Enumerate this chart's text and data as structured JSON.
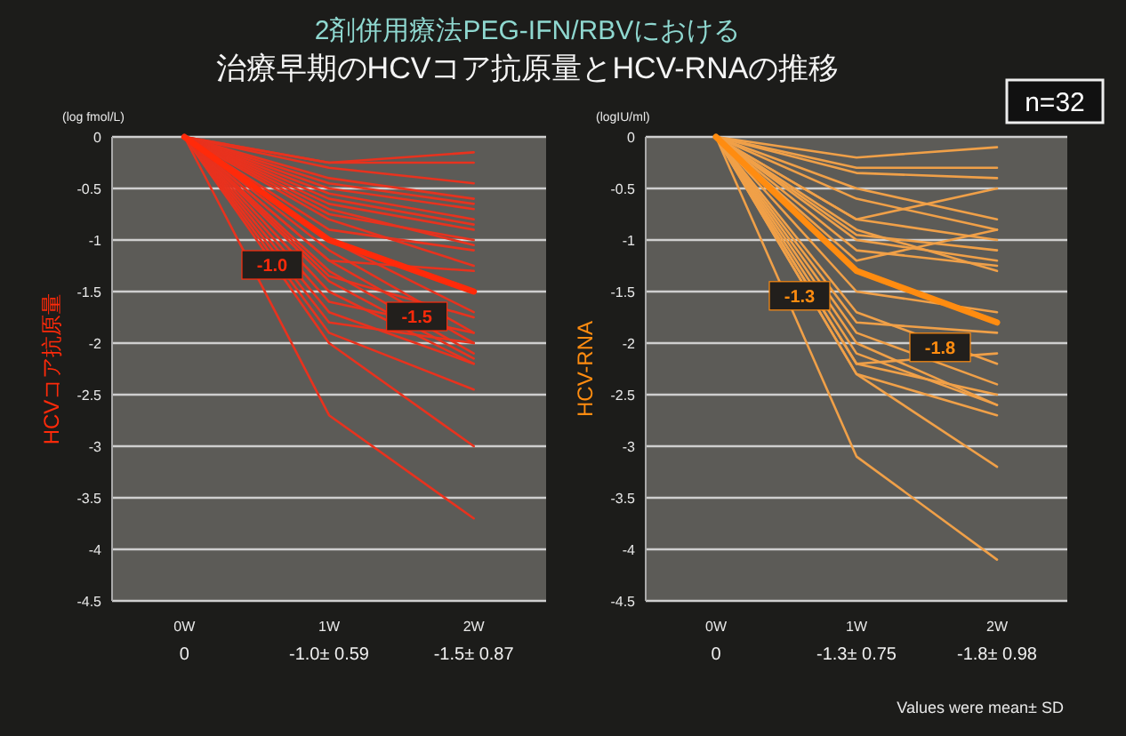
{
  "chart_data": [
    {
      "type": "line",
      "title": "2剤併用療法PEG-IFN/RBVにおける",
      "subtitle": "治療早期のHCVコア抗原量とHCV-RNAの推移",
      "ylabel": "HCVコア抗原量",
      "categories": [
        "0W",
        "1W",
        "2W"
      ],
      "ylim": [
        -4.5,
        0
      ],
      "yticks": [
        0,
        -0.5,
        -1,
        -1.5,
        -2,
        -2.5,
        -3,
        -3.5,
        -4,
        -4.5
      ],
      "grid": "y",
      "annotations": [
        "(log fmol/L)",
        {
          "text": "-1.0",
          "x": "1W",
          "y": -1.0
        },
        {
          "text": "-1.5",
          "x": "2W",
          "y": -1.5
        }
      ],
      "series": [
        {
          "color": "#e8321e",
          "values": [
            0,
            -0.25,
            -0.15
          ]
        },
        {
          "color": "#e8321e",
          "values": [
            0,
            -0.25,
            -0.25
          ]
        },
        {
          "color": "#e8321e",
          "values": [
            0,
            -0.3,
            -0.45
          ]
        },
        {
          "color": "#e8321e",
          "values": [
            0,
            -0.4,
            -0.6
          ]
        },
        {
          "color": "#e8321e",
          "values": [
            0,
            -0.45,
            -0.65
          ]
        },
        {
          "color": "#e8321e",
          "values": [
            0,
            -0.5,
            -0.7
          ]
        },
        {
          "color": "#e8321e",
          "values": [
            0,
            -0.55,
            -0.8
          ]
        },
        {
          "color": "#e8321e",
          "values": [
            0,
            -0.6,
            -0.85
          ]
        },
        {
          "color": "#e8321e",
          "values": [
            0,
            -0.65,
            -0.9
          ]
        },
        {
          "color": "#e8321e",
          "values": [
            0,
            -0.7,
            -1.05
          ]
        },
        {
          "color": "#e8321e",
          "values": [
            0,
            -0.75,
            -1.0
          ]
        },
        {
          "color": "#e8321e",
          "values": [
            0,
            -0.8,
            -1.25
          ]
        },
        {
          "color": "#e8321e",
          "values": [
            0,
            -0.9,
            -1.1
          ]
        },
        {
          "color": "#e8321e",
          "values": [
            0,
            -1.2,
            -1.3
          ]
        },
        {
          "color": "#e8321e",
          "values": [
            0,
            -1.0,
            -1.7
          ]
        },
        {
          "color": "#e8321e",
          "values": [
            0,
            -1.1,
            -1.9
          ]
        },
        {
          "color": "#e8321e",
          "values": [
            0,
            -1.2,
            -2.0
          ]
        },
        {
          "color": "#e8321e",
          "values": [
            0,
            -1.3,
            -2.1
          ]
        },
        {
          "color": "#e8321e",
          "values": [
            0,
            -1.35,
            -1.75
          ]
        },
        {
          "color": "#e8321e",
          "values": [
            0,
            -1.4,
            -2.15
          ]
        },
        {
          "color": "#e8321e",
          "values": [
            0,
            -1.5,
            -2.2
          ]
        },
        {
          "color": "#e8321e",
          "values": [
            0,
            -1.6,
            -1.9
          ]
        },
        {
          "color": "#e8321e",
          "values": [
            0,
            -1.7,
            -2.2
          ]
        },
        {
          "color": "#e8321e",
          "values": [
            0,
            -1.8,
            -2.0
          ]
        },
        {
          "color": "#e8321e",
          "values": [
            0,
            -1.9,
            -2.45
          ]
        },
        {
          "color": "#e8321e",
          "values": [
            0,
            -2.0,
            -3.0
          ]
        },
        {
          "color": "#e8321e",
          "values": [
            0,
            -2.7,
            -3.7
          ]
        },
        {
          "color": "#ff2a0a",
          "values": [
            0,
            -1.0,
            -1.5
          ],
          "value_labels": [
            "0",
            "-1.0± 0.59",
            "-1.5± 0.87"
          ]
        }
      ]
    },
    {
      "type": "line",
      "ylabel": "HCV-RNA",
      "categories": [
        "0W",
        "1W",
        "2W"
      ],
      "ylim": [
        -4.5,
        0
      ],
      "yticks": [
        0,
        -0.5,
        -1,
        -1.5,
        -2,
        -2.5,
        -3,
        -3.5,
        -4,
        -4.5
      ],
      "grid": "y",
      "annotations": [
        "(logIU/ml)",
        "n=32",
        "Values were mean± SD",
        {
          "text": "-1.3",
          "x": "1W",
          "y": -1.3
        },
        {
          "text": "-1.8",
          "x": "2W",
          "y": -1.8
        }
      ],
      "series": [
        {
          "color": "#f0a048",
          "values": [
            0,
            -0.2,
            -0.1
          ]
        },
        {
          "color": "#f0a048",
          "values": [
            0,
            -0.3,
            -0.3
          ]
        },
        {
          "color": "#f0a048",
          "values": [
            0,
            -0.35,
            -0.4
          ]
        },
        {
          "color": "#f0a048",
          "values": [
            0,
            -0.8,
            -0.5
          ]
        },
        {
          "color": "#f0a048",
          "values": [
            0,
            -0.5,
            -0.8
          ]
        },
        {
          "color": "#f0a048",
          "values": [
            0,
            -0.6,
            -0.9
          ]
        },
        {
          "color": "#f0a048",
          "values": [
            0,
            -0.8,
            -1.0
          ]
        },
        {
          "color": "#f0a048",
          "values": [
            0,
            -1.2,
            -0.9
          ]
        },
        {
          "color": "#f0a048",
          "values": [
            0,
            -0.95,
            -1.1
          ]
        },
        {
          "color": "#f0a048",
          "values": [
            0,
            -1.0,
            -1.2
          ]
        },
        {
          "color": "#f0a048",
          "values": [
            0,
            -0.9,
            -1.3
          ]
        },
        {
          "color": "#f0a048",
          "values": [
            0,
            -1.1,
            -1.25
          ]
        },
        {
          "color": "#f0a048",
          "values": [
            0,
            -1.5,
            -1.7
          ]
        },
        {
          "color": "#f0a048",
          "values": [
            0,
            -1.8,
            -1.9
          ]
        },
        {
          "color": "#f0a048",
          "values": [
            0,
            -1.7,
            -2.2
          ]
        },
        {
          "color": "#f0a048",
          "values": [
            0,
            -1.9,
            -2.4
          ]
        },
        {
          "color": "#f0a048",
          "values": [
            0,
            -2.0,
            -2.6
          ]
        },
        {
          "color": "#f0a048",
          "values": [
            0,
            -2.2,
            -2.1
          ]
        },
        {
          "color": "#f0a048",
          "values": [
            0,
            -2.2,
            -2.5
          ]
        },
        {
          "color": "#f0a048",
          "values": [
            0,
            -2.1,
            -2.6
          ]
        },
        {
          "color": "#f0a048",
          "values": [
            0,
            -2.3,
            -2.7
          ]
        },
        {
          "color": "#f0a048",
          "values": [
            0,
            -2.3,
            -3.2
          ]
        },
        {
          "color": "#f0a048",
          "values": [
            0,
            -3.1,
            -4.1
          ]
        },
        {
          "color": "#ff8c10",
          "values": [
            0,
            -1.3,
            -1.8
          ],
          "value_labels": [
            "0",
            "-1.3± 0.75",
            "-1.8± 0.98"
          ]
        }
      ]
    }
  ]
}
